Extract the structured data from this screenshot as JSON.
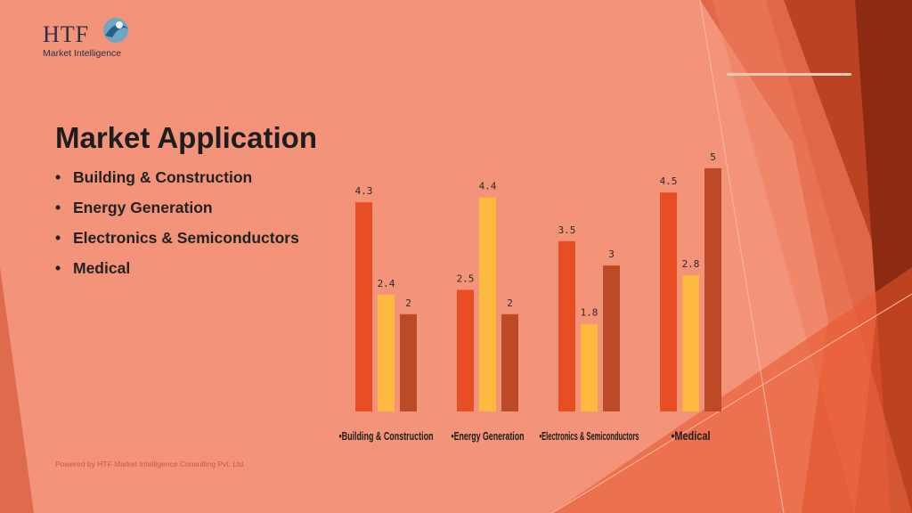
{
  "logo": {
    "brand": "HTF",
    "tagline": "Market Intelligence"
  },
  "slide": {
    "title": "Market Application",
    "bullets": [
      "Building & Construction",
      "Energy Generation",
      "Electronics & Semiconductors",
      "Medical"
    ],
    "footer": "Powered by HTF Market Intelligence Consulting Pvt. Ltd."
  },
  "colors": {
    "background": "#F2937A",
    "series_1": "#E84E23",
    "series_2": "#FDB93F",
    "series_3": "#BD4A27",
    "accent_dark": "#8C2A12"
  },
  "chart_data": {
    "type": "bar",
    "categories": [
      "•Building & Construction",
      "•Energy Generation",
      "•Electronics & Semiconductors",
      "•Medical"
    ],
    "series": [
      {
        "values": [
          4.3,
          2.5,
          3.5,
          4.5
        ]
      },
      {
        "values": [
          2.4,
          4.4,
          1.8,
          2.8
        ]
      },
      {
        "values": [
          2,
          2,
          3,
          5
        ]
      }
    ],
    "ylim": [
      0,
      5.2
    ],
    "grid": false,
    "legend": "none",
    "data_labels": true
  }
}
